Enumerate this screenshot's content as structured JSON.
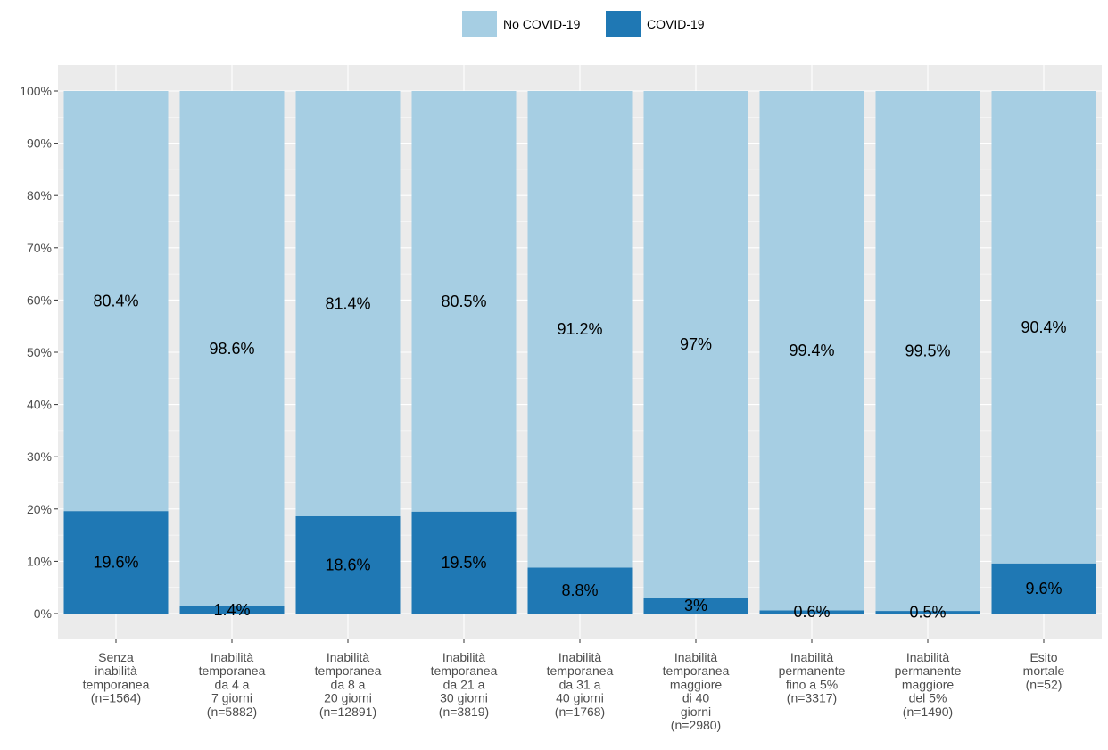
{
  "chart_data": {
    "type": "bar",
    "stacked": true,
    "stack_mode": "percent",
    "categories": [
      [
        "Senza",
        "inabilità",
        "temporanea",
        "(n=1564)"
      ],
      [
        "Inabilità",
        "temporanea",
        "da 4 a",
        "7 giorni",
        "(n=5882)"
      ],
      [
        "Inabilità",
        "temporanea",
        "da 8 a",
        "20 giorni",
        "(n=12891)"
      ],
      [
        "Inabilità",
        "temporanea",
        "da 21 a",
        "30 giorni",
        "(n=3819)"
      ],
      [
        "Inabilità",
        "temporanea",
        "da 31 a",
        "40 giorni",
        "(n=1768)"
      ],
      [
        "Inabilità",
        "temporanea",
        "maggiore",
        "di 40",
        "giorni",
        "(n=2980)"
      ],
      [
        "Inabilità",
        "permanente",
        "fino a 5%",
        "(n=3317)"
      ],
      [
        "Inabilità",
        "permanente",
        "maggiore",
        "del 5%",
        "(n=1490)"
      ],
      [
        "Esito",
        "mortale",
        "(n=52)"
      ]
    ],
    "series": [
      {
        "name": "COVID-19",
        "color": "#1f78b4",
        "values": [
          19.6,
          1.4,
          18.6,
          19.5,
          8.8,
          3,
          0.6,
          0.5,
          9.6
        ],
        "labels": [
          "19.6%",
          "1.4%",
          "18.6%",
          "19.5%",
          "8.8%",
          "3%",
          "0.6%",
          "0.5%",
          "9.6%"
        ]
      },
      {
        "name": "No COVID-19",
        "color": "#a6cee3",
        "values": [
          80.4,
          98.6,
          81.4,
          80.5,
          91.2,
          97,
          99.4,
          99.5,
          90.4
        ],
        "labels": [
          "80.4%",
          "98.6%",
          "81.4%",
          "80.5%",
          "91.2%",
          "97%",
          "99.4%",
          "99.5%",
          "90.4%"
        ]
      }
    ],
    "legend_order": [
      "No COVID-19",
      "COVID-19"
    ],
    "legend_position": "top",
    "ylim": [
      0,
      100
    ],
    "yticks": [
      0,
      10,
      20,
      30,
      40,
      50,
      60,
      70,
      80,
      90,
      100
    ],
    "ytick_labels": [
      "0%",
      "10%",
      "20%",
      "30%",
      "40%",
      "50%",
      "60%",
      "70%",
      "80%",
      "90%",
      "100%"
    ],
    "grid": true,
    "panel_background": "#ebebeb",
    "title": "",
    "xlabel": "",
    "ylabel": ""
  }
}
